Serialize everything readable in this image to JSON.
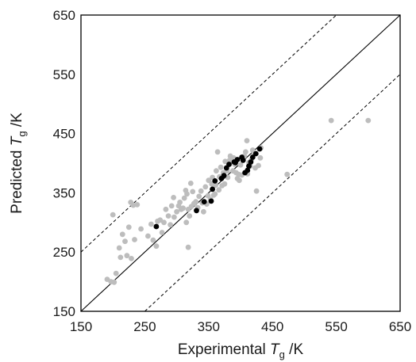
{
  "chart_data": {
    "type": "scatter",
    "title": "",
    "xlabel": {
      "main": "Experimental ",
      "italic": "T",
      "sub": "g",
      "unit": " /K"
    },
    "ylabel": {
      "main": "Predicted ",
      "italic": "T",
      "sub": "g",
      "unit": " /K"
    },
    "xlim": [
      150,
      650
    ],
    "ylim": [
      150,
      650
    ],
    "xticks": [
      "150",
      "250",
      "350",
      "450",
      "550",
      "650"
    ],
    "yticks": [
      "150",
      "250",
      "350",
      "450",
      "550",
      "650"
    ],
    "grid": false,
    "legend": "none",
    "reference_lines": [
      {
        "style": "solid",
        "description": "y = x",
        "offset": 0
      },
      {
        "style": "dashed",
        "description": "y = x + 100",
        "offset": 100
      },
      {
        "style": "dashed",
        "description": "y = x - 100",
        "offset": -100
      }
    ],
    "series": [
      {
        "color": "#bdbdbd",
        "points": [
          [
            191,
            204
          ],
          [
            197,
            200
          ],
          [
            202,
            199
          ],
          [
            205,
            214
          ],
          [
            200,
            313
          ],
          [
            210,
            257
          ],
          [
            212,
            241
          ],
          [
            215,
            280
          ],
          [
            219,
            268
          ],
          [
            222,
            244
          ],
          [
            225,
            292
          ],
          [
            228,
            334
          ],
          [
            229,
            239
          ],
          [
            232,
            329
          ],
          [
            234,
            271
          ],
          [
            238,
            330
          ],
          [
            244,
            289
          ],
          [
            255,
            277
          ],
          [
            260,
            297
          ],
          [
            263,
            270
          ],
          [
            268,
            260
          ],
          [
            270,
            302
          ],
          [
            274,
            304
          ],
          [
            277,
            283
          ],
          [
            280,
            300
          ],
          [
            283,
            322
          ],
          [
            287,
            311
          ],
          [
            290,
            296
          ],
          [
            292,
            328
          ],
          [
            295,
            342
          ],
          [
            296,
            309
          ],
          [
            300,
            318
          ],
          [
            303,
            328
          ],
          [
            305,
            334
          ],
          [
            307,
            322
          ],
          [
            310,
            324
          ],
          [
            312,
            341
          ],
          [
            314,
            354
          ],
          [
            315,
            300
          ],
          [
            316,
            348
          ],
          [
            318,
            258
          ],
          [
            318,
            322
          ],
          [
            320,
            311
          ],
          [
            322,
            366
          ],
          [
            323,
            327
          ],
          [
            325,
            352
          ],
          [
            327,
            332
          ],
          [
            330,
            335
          ],
          [
            333,
            325
          ],
          [
            335,
            344
          ],
          [
            338,
            353
          ],
          [
            340,
            333
          ],
          [
            342,
            318
          ],
          [
            345,
            360
          ],
          [
            347,
            331
          ],
          [
            349,
            345
          ],
          [
            350,
            371
          ],
          [
            353,
            339
          ],
          [
            355,
            365
          ],
          [
            356,
            376
          ],
          [
            358,
            346
          ],
          [
            360,
            348
          ],
          [
            361,
            363
          ],
          [
            362,
            387
          ],
          [
            364,
            419
          ],
          [
            366,
            355
          ],
          [
            367,
            377
          ],
          [
            369,
            393
          ],
          [
            371,
            362
          ],
          [
            373,
            384
          ],
          [
            375,
            365
          ],
          [
            376,
            403
          ],
          [
            378,
            392
          ],
          [
            379,
            387
          ],
          [
            380,
            376
          ],
          [
            383,
            405
          ],
          [
            384,
            412
          ],
          [
            386,
            403
          ],
          [
            388,
            387
          ],
          [
            389,
            409
          ],
          [
            391,
            398
          ],
          [
            393,
            384
          ],
          [
            395,
            374
          ],
          [
            397,
            381
          ],
          [
            398,
            371
          ],
          [
            400,
            397
          ],
          [
            402,
            380
          ],
          [
            404,
            409
          ],
          [
            406,
            412
          ],
          [
            408,
            419
          ],
          [
            410,
            438
          ],
          [
            411,
            382
          ],
          [
            413,
            401
          ],
          [
            415,
            395
          ],
          [
            417,
            406
          ],
          [
            419,
            422
          ],
          [
            421,
            416
          ],
          [
            423,
            392
          ],
          [
            425,
            353
          ],
          [
            428,
            396
          ],
          [
            431,
            409
          ],
          [
            432,
            426
          ],
          [
            473,
            381
          ],
          [
            542,
            472
          ],
          [
            600,
            472
          ]
        ]
      },
      {
        "color": "#000000",
        "points": [
          [
            268,
            293
          ],
          [
            331,
            320
          ],
          [
            343,
            335
          ],
          [
            354,
            336
          ],
          [
            356,
            356
          ],
          [
            360,
            370
          ],
          [
            370,
            374
          ],
          [
            374,
            379
          ],
          [
            378,
            392
          ],
          [
            382,
            398
          ],
          [
            390,
            402
          ],
          [
            392,
            401
          ],
          [
            395,
            406
          ],
          [
            402,
            410
          ],
          [
            404,
            405
          ],
          [
            407,
            384
          ],
          [
            411,
            388
          ],
          [
            413,
            395
          ],
          [
            416,
            402
          ],
          [
            419,
            410
          ],
          [
            424,
            416
          ],
          [
            430,
            424
          ]
        ]
      }
    ]
  }
}
